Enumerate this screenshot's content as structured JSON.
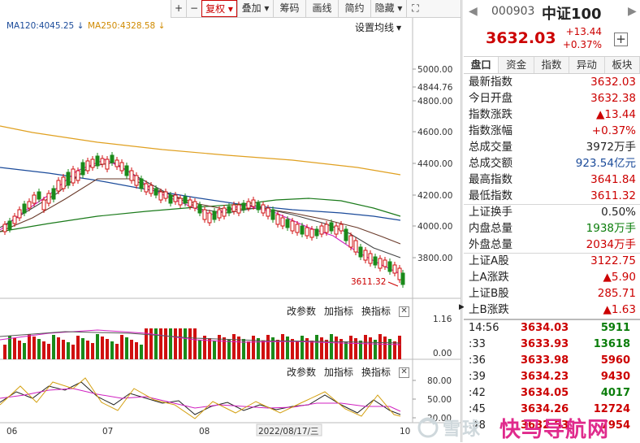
{
  "toolbar": {
    "items": [
      {
        "label": "+",
        "width": 19
      },
      {
        "label": "−",
        "width": 19
      },
      {
        "label": "复权 ▾",
        "width": 44,
        "active": true
      },
      {
        "label": "叠加 ▾",
        "width": 44
      },
      {
        "label": "筹码",
        "width": 40
      },
      {
        "label": "画线",
        "width": 40
      },
      {
        "label": "简约",
        "width": 40
      },
      {
        "label": "隐藏 ▾",
        "width": 44
      },
      {
        "label": "⛶",
        "width": 22
      }
    ]
  },
  "ma": {
    "ma120": "MA120:4045.25 ↓",
    "ma250": "MA250:4328.58 ↓",
    "setting": "设置均线"
  },
  "axis": {
    "price_ticks": [
      "5000.00",
      "4844.76",
      "4800.00",
      "4600.00",
      "4400.00",
      "4200.00",
      "4000.00",
      "3800.00"
    ],
    "low_label": "3611.32",
    "vol_ticks": [
      "1.16",
      "0.00"
    ],
    "osc_ticks": [
      "80.00",
      "50.00",
      "20.00"
    ],
    "x_labels": [
      "06",
      "07",
      "08",
      "2022/08/17/三",
      "10"
    ]
  },
  "panel_tools": {
    "param": "改参数",
    "add": "加指标",
    "switch": "换指标",
    "close": "✕"
  },
  "header": {
    "nav_left": "◀",
    "code": "000903",
    "name": "中证100",
    "nav_right": "▶",
    "price": "3632.03",
    "change": "+13.44",
    "change_pct": "+0.37%",
    "add": "+"
  },
  "tabs": [
    "盘口",
    "资金",
    "指数",
    "异动",
    "板块"
  ],
  "quote_rows": [
    {
      "label": "最新指数",
      "value": "3632.03",
      "color": "#c00"
    },
    {
      "label": "今日开盘",
      "value": "3632.38",
      "color": "#c00"
    },
    {
      "label": "指数涨跌",
      "value": "▲13.44",
      "color": "#c00"
    },
    {
      "label": "指数涨幅",
      "value": "+0.37%",
      "color": "#c00"
    },
    {
      "label": "总成交量",
      "value": "3972万手",
      "color": "#222"
    },
    {
      "label": "总成交额",
      "value": "923.54亿元",
      "color": "#1b4b9a"
    },
    {
      "label": "最高指数",
      "value": "3641.84",
      "color": "#c00"
    },
    {
      "label": "最低指数",
      "value": "3611.32",
      "color": "#c00"
    }
  ],
  "quote_rows2": [
    {
      "label": "上证换手",
      "value": "0.50%",
      "color": "#222"
    },
    {
      "label": "内盘总量",
      "value": "1938万手",
      "color": "#0a7d0a"
    },
    {
      "label": "外盘总量",
      "value": "2034万手",
      "color": "#c00"
    }
  ],
  "quote_rows3": [
    {
      "label": "上证A股",
      "value": "3122.75",
      "color": "#c00"
    },
    {
      "label": "上A涨跌",
      "value": "▲5.90",
      "color": "#c00"
    },
    {
      "label": "上证B股",
      "value": "285.71",
      "color": "#c00"
    },
    {
      "label": "上B涨跌",
      "value": "▲1.63",
      "color": "#c00"
    }
  ],
  "ticks": [
    {
      "time": "14:56",
      "price": "3634.03",
      "vol": "5911",
      "red": false
    },
    {
      "time": ":33",
      "price": "3633.93",
      "vol": "13618",
      "red": false
    },
    {
      "time": ":36",
      "price": "3633.98",
      "vol": "5960",
      "red": true
    },
    {
      "time": ":39",
      "price": "3634.23",
      "vol": "9430",
      "red": true
    },
    {
      "time": ":42",
      "price": "3634.05",
      "vol": "4017",
      "red": false
    },
    {
      "time": ":45",
      "price": "3634.26",
      "vol": "12724",
      "red": true
    },
    {
      "time": ":48",
      "price": "3632.53",
      "vol": "7954",
      "red": true
    }
  ],
  "watermark": {
    "text": "雪球",
    "brand": "快马导航网"
  }
}
